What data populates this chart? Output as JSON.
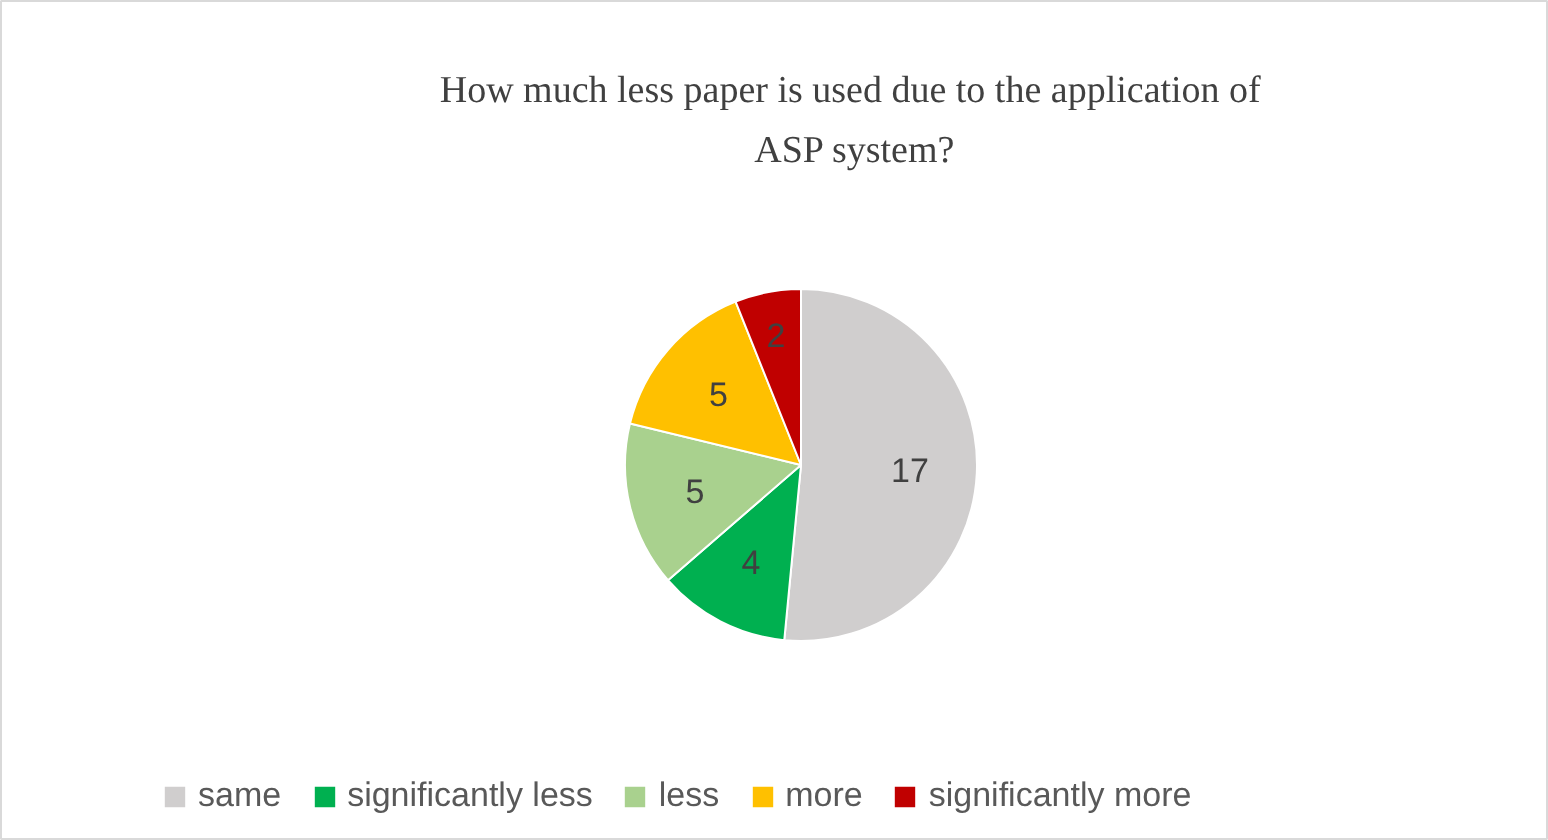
{
  "chart_data": {
    "type": "pie",
    "title": "How much less paper is used due to the application  of\nASP system?",
    "categories": [
      "same",
      "significantly less",
      "less",
      "more",
      "significantly more"
    ],
    "values": [
      17,
      4,
      5,
      5,
      2
    ],
    "colors": [
      "#d0cece",
      "#00b050",
      "#a9d18e",
      "#ffc000",
      "#c00000"
    ],
    "data_labels": true,
    "legend": "bottom"
  }
}
